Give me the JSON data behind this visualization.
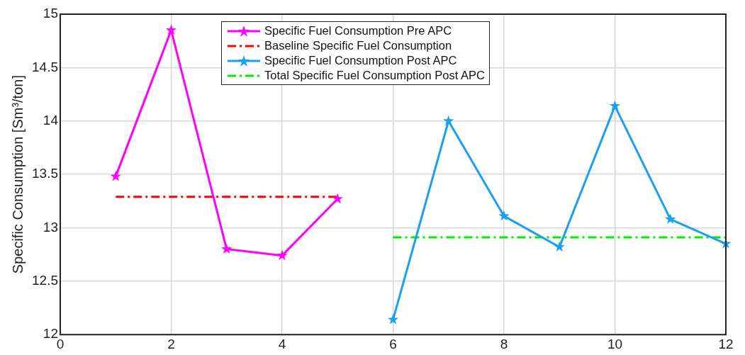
{
  "chart_data": {
    "type": "line",
    "ylabel": "Specific Consumption [Sm³/ton]",
    "xlim": [
      0,
      12
    ],
    "xticks": [
      0,
      2,
      4,
      6,
      8,
      10,
      12
    ],
    "ylim": [
      12,
      15
    ],
    "yticks": [
      12,
      12.5,
      13,
      13.5,
      14,
      14.5,
      15
    ],
    "grid": true,
    "legend": "top",
    "series": [
      {
        "name": "Specific Fuel Consumption Pre APC",
        "color": "#ff00ff",
        "marker": "star",
        "line_style": "solid",
        "x": [
          1,
          2,
          3,
          4,
          5
        ],
        "values": [
          13.48,
          14.85,
          12.8,
          12.74,
          13.27
        ]
      },
      {
        "name": "Baseline Specific Fuel Consumption",
        "color": "#ff0000",
        "marker": "none",
        "line_style": "dashed",
        "x": [
          1,
          5
        ],
        "values": [
          13.29,
          13.29
        ]
      },
      {
        "name": "Specific Fuel Consumption Post APC",
        "color": "#1aa0f0",
        "marker": "star",
        "line_style": "solid",
        "x": [
          6,
          7,
          8,
          9,
          10,
          11,
          12
        ],
        "values": [
          12.14,
          14.0,
          13.11,
          12.82,
          14.14,
          13.08,
          12.85
        ]
      },
      {
        "name": "Total Specific Fuel Consumption Post APC",
        "color": "#00ee00",
        "marker": "none",
        "line_style": "dashed",
        "x": [
          6,
          12
        ],
        "values": [
          12.91,
          12.91
        ]
      }
    ]
  }
}
